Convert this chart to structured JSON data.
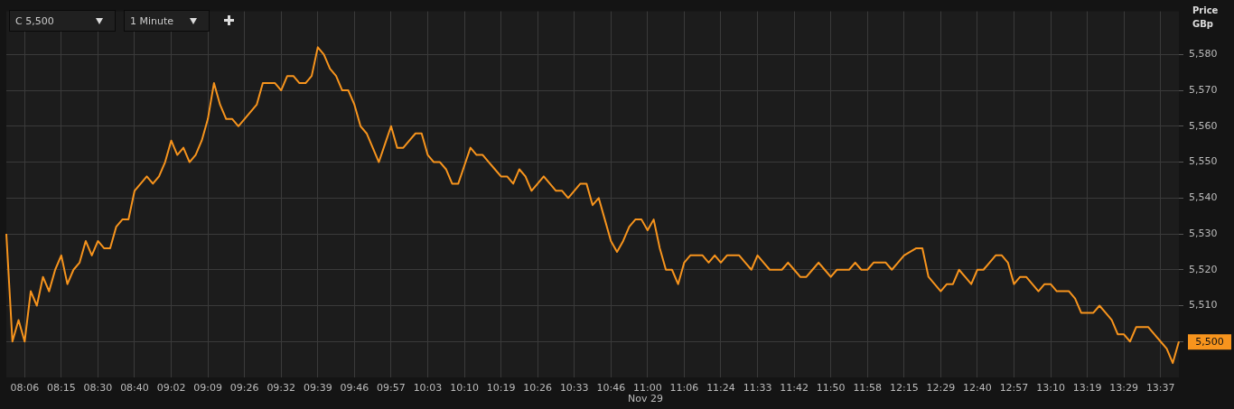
{
  "chart_data": {
    "type": "line",
    "ylabel": "Price GBp",
    "categories": [
      null,
      null,
      null,
      "08:06",
      null,
      null,
      null,
      null,
      null,
      "08:15",
      null,
      null,
      null,
      null,
      null,
      "08:30",
      null,
      null,
      null,
      null,
      null,
      "08:40",
      null,
      null,
      null,
      null,
      null,
      "09:02",
      null,
      null,
      null,
      null,
      null,
      "09:09",
      null,
      null,
      null,
      null,
      null,
      "09:26",
      null,
      null,
      null,
      null,
      null,
      "09:32",
      null,
      null,
      null,
      null,
      null,
      "09:39",
      null,
      null,
      null,
      null,
      null,
      "09:46",
      null,
      null,
      null,
      null,
      null,
      "09:57",
      null,
      null,
      null,
      null,
      null,
      "10:03",
      null,
      null,
      null,
      null,
      null,
      "10:10",
      null,
      null,
      null,
      null,
      null,
      "10:19",
      null,
      null,
      null,
      null,
      null,
      "10:26",
      null,
      null,
      null,
      null,
      null,
      "10:33",
      null,
      null,
      null,
      null,
      null,
      "10:46",
      null,
      null,
      null,
      null,
      null,
      "11:00",
      null,
      null,
      null,
      null,
      null,
      "11:06",
      null,
      null,
      null,
      null,
      null,
      "11:24",
      null,
      null,
      null,
      null,
      null,
      "11:33",
      null,
      null,
      null,
      null,
      null,
      "11:42",
      null,
      null,
      null,
      null,
      null,
      "11:50",
      null,
      null,
      null,
      null,
      null,
      "11:58",
      null,
      null,
      null,
      null,
      null,
      "12:15",
      null,
      null,
      null,
      null,
      null,
      "12:29",
      null,
      null,
      null,
      null,
      null,
      "12:40",
      null,
      null,
      null,
      null,
      null,
      "12:57",
      null,
      null,
      null,
      null,
      null,
      "13:10",
      null,
      null,
      null,
      null,
      null,
      "13:19",
      null,
      null,
      null,
      null,
      null,
      "13:29",
      null,
      null,
      null,
      null,
      null,
      "13:37",
      null,
      null,
      null
    ],
    "series": [
      {
        "color": "#f7941d",
        "values": [
          5530,
          5500,
          5506,
          5500,
          5514,
          5510,
          5518,
          5514,
          5520,
          5524,
          5516,
          5520,
          5522,
          5528,
          5524,
          5528,
          5526,
          5526,
          5532,
          5534,
          5534,
          5542,
          5544,
          5546,
          5544,
          5546,
          5550,
          5556,
          5552,
          5554,
          5550,
          5552,
          5556,
          5562,
          5572,
          5566,
          5562,
          5562,
          5560,
          5562,
          5564,
          5566,
          5572,
          5572,
          5572,
          5570,
          5574,
          5574,
          5572,
          5572,
          5574,
          5582,
          5580,
          5576,
          5574,
          5570,
          5570,
          5566,
          5560,
          5558,
          5554,
          5550,
          5555,
          5560,
          5554,
          5554,
          5556,
          5558,
          5558,
          5552,
          5550,
          5550,
          5548,
          5544,
          5544,
          5549,
          5554,
          5552,
          5552,
          5550,
          5548,
          5546,
          5546,
          5544,
          5548,
          5546,
          5542,
          5544,
          5546,
          5544,
          5542,
          5542,
          5540,
          5542,
          5544,
          5544,
          5538,
          5540,
          5534,
          5528,
          5525,
          5528,
          5532,
          5534,
          5534,
          5531,
          5534,
          5526,
          5520,
          5520,
          5516,
          5522,
          5524,
          5524,
          5524,
          5522,
          5524,
          5522,
          5524,
          5524,
          5524,
          5522,
          5520,
          5524,
          5522,
          5520,
          5520,
          5520,
          5522,
          5520,
          5518,
          5518,
          5520,
          5522,
          5520,
          5518,
          5520,
          5520,
          5520,
          5522,
          5520,
          5520,
          5522,
          5522,
          5522,
          5520,
          5522,
          5524,
          5525,
          5526,
          5526,
          5518,
          5516,
          5514,
          5516,
          5516,
          5520,
          5518,
          5516,
          5520,
          5520,
          5522,
          5524,
          5524,
          5522,
          5516,
          5518,
          5518,
          5516,
          5514,
          5516,
          5516,
          5514,
          5514,
          5514,
          5512,
          5508,
          5508,
          5508,
          5510,
          5508,
          5506,
          5502,
          5502,
          5500,
          5504,
          5504,
          5504,
          5502,
          5500,
          5498,
          5494,
          5500
        ]
      }
    ],
    "ylim": [
      5490,
      5592
    ],
    "yticks": [
      {
        "value": 5500,
        "label": null
      },
      {
        "value": 5510,
        "label": "5,510"
      },
      {
        "value": 5520,
        "label": "5,520"
      },
      {
        "value": 5530,
        "label": "5,530"
      },
      {
        "value": 5540,
        "label": "5,540"
      },
      {
        "value": 5550,
        "label": "5,550"
      },
      {
        "value": 5560,
        "label": "5,560"
      },
      {
        "value": 5570,
        "label": "5,570"
      },
      {
        "value": 5580,
        "label": "5,580"
      }
    ],
    "grid": true,
    "legend": false,
    "marker": "none",
    "line_style": "solid",
    "annotations": [
      "C 5,500",
      "1 Minute",
      "Nov 29",
      "5,500"
    ]
  }
}
